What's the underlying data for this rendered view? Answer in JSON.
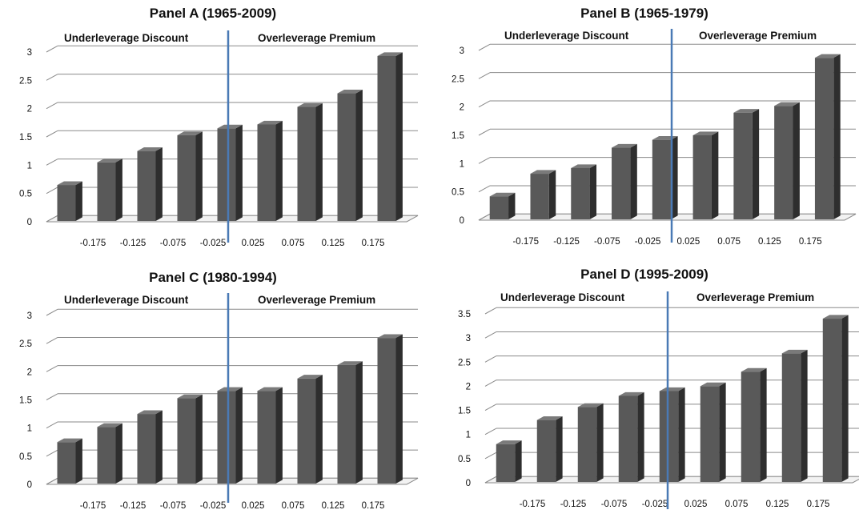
{
  "chart_data": [
    {
      "type": "bar",
      "title": "Panel A (1965-2009)",
      "region_labels": {
        "left": "Underleverage Discount",
        "right": "Overleverage Premium"
      },
      "x_tick_labels": [
        "-0.175",
        "-0.125",
        "-0.075",
        "-0.025",
        "0.025",
        "0.075",
        "0.125",
        "0.175"
      ],
      "y_tick_labels": [
        "0",
        "0.5",
        "1",
        "1.5",
        "2",
        "2.5",
        "3"
      ],
      "values": [
        0.65,
        1.05,
        1.25,
        1.53,
        1.65,
        1.72,
        2.03,
        2.27,
        2.93
      ],
      "ylim": [
        0,
        3
      ],
      "grid": true,
      "bar_color": "#595959",
      "divider_color": "#4a7ab5"
    },
    {
      "type": "bar",
      "title": "Panel B (1965-1979)",
      "region_labels": {
        "left": "Underleverage Discount",
        "right": "Overleverage Premium"
      },
      "x_tick_labels": [
        "-0.175",
        "-0.125",
        "-0.075",
        "-0.025",
        "0.025",
        "0.075",
        "0.125",
        "0.175"
      ],
      "y_tick_labels": [
        "0",
        "0.5",
        "1",
        "1.5",
        "2",
        "2.5",
        "3"
      ],
      "values": [
        0.42,
        0.82,
        0.92,
        1.28,
        1.42,
        1.5,
        1.9,
        2.02,
        2.87
      ],
      "ylim": [
        0,
        3
      ],
      "grid": true,
      "bar_color": "#595959",
      "divider_color": "#4a7ab5"
    },
    {
      "type": "bar",
      "title": "Panel C (1980-1994)",
      "region_labels": {
        "left": "Underleverage Discount",
        "right": "Overleverage Premium"
      },
      "x_tick_labels": [
        "-0.175",
        "-0.125",
        "-0.075",
        "-0.025",
        "0.025",
        "0.075",
        "0.125",
        "0.175"
      ],
      "y_tick_labels": [
        "0",
        "0.5",
        "1",
        "1.5",
        "2",
        "2.5",
        "3"
      ],
      "values": [
        0.75,
        1.02,
        1.25,
        1.53,
        1.66,
        1.66,
        1.88,
        2.12,
        2.6
      ],
      "ylim": [
        0,
        3
      ],
      "grid": true,
      "bar_color": "#595959",
      "divider_color": "#4a7ab5"
    },
    {
      "type": "bar",
      "title": "Panel D (1995-2009)",
      "region_labels": {
        "left": "Underleverage Discount",
        "right": "Overleverage Premium"
      },
      "x_tick_labels": [
        "-0.175",
        "-0.125",
        "-0.075",
        "-0.025",
        "0.025",
        "0.075",
        "0.125",
        "0.175"
      ],
      "y_tick_labels": [
        "0",
        "0.5",
        "1",
        "1.5",
        "2",
        "2.5",
        "3",
        "3.5"
      ],
      "values": [
        0.8,
        1.3,
        1.57,
        1.8,
        1.9,
        2.0,
        2.3,
        2.68,
        3.4
      ],
      "ylim": [
        0,
        3.5
      ],
      "grid": true,
      "bar_color": "#595959",
      "divider_color": "#4a7ab5"
    }
  ]
}
